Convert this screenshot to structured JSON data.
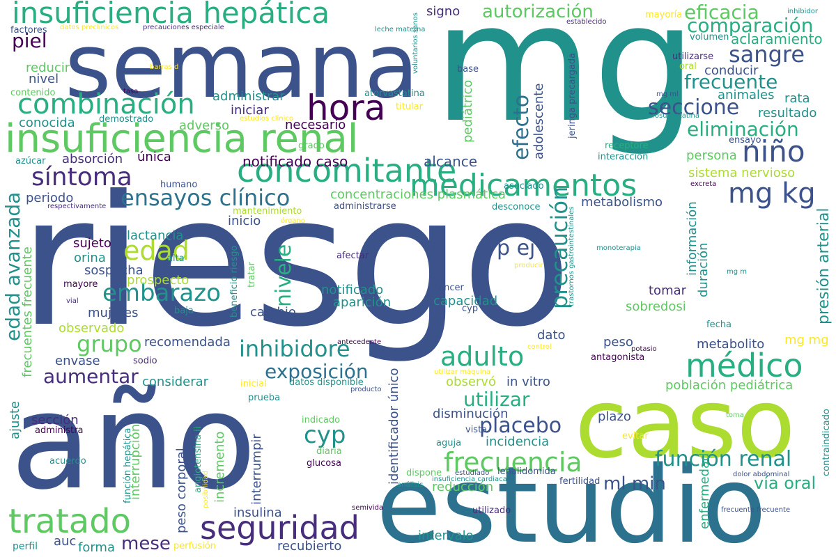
{
  "palette": {
    "navy": "#3b528b",
    "indigo": "#472d7b",
    "dark": "#440154",
    "teal": "#2c728e",
    "cyan": "#21918c",
    "green": "#28ae80",
    "lime": "#5ec962",
    "yellowgreen": "#addc30",
    "yellow": "#fde725"
  },
  "words": [
    "mg",
    "semana",
    "riesgo",
    "año",
    "estudio",
    "caso",
    "hora",
    "insuficiencia renal",
    "insuficiencia hepática",
    "concomitante",
    "medicamentos",
    "tratado",
    "seguridad",
    "médico",
    "frecuencia",
    "niño",
    "combinación",
    "síntoma",
    "edad",
    "adulto",
    "sangre",
    "mg kg",
    "autorización",
    "eficacia",
    "comparación",
    "aclaramiento",
    "frecuente",
    "seccione",
    "eliminación",
    "efecto",
    "precaución",
    "ensayos clínico",
    "edad avanzada",
    "embarazo",
    "grupo",
    "inhibidore",
    "exposición",
    "cyp",
    "placebo",
    "utilizar",
    "función renal",
    "aumentar",
    "nivele",
    "p ej",
    "ml min",
    "presión arterial",
    "piel",
    "notificado caso",
    "alcance",
    "absorción",
    "única",
    "periodo",
    "lactancia",
    "sujeto",
    "orina",
    "sospecha",
    "prospecto",
    "mujeres",
    "observado",
    "recomendada",
    "envase",
    "considerar",
    "sección",
    "administra",
    "acuerdo",
    "auc",
    "mese",
    "forma",
    "perfil",
    "perfusión",
    "insulina",
    "recubierto",
    "intervalo",
    "utilizado",
    "reducción",
    "fertilidad",
    "vía oral",
    "enfermedad",
    "contraindicado",
    "población pediátrica",
    "metabolito",
    "mg mg",
    "peso",
    "antagonista",
    "potasio",
    "control",
    "in vitro",
    "observó",
    "disminución",
    "vista",
    "aguja",
    "incidencia",
    "plazo",
    "evitar",
    "capacidad",
    "cyp c",
    "aparición",
    "notificado",
    "cambio",
    "tratar",
    "beneficio riesgo",
    "cáncer",
    "afectar",
    "tomar",
    "sobredosi",
    "duración",
    "información",
    "dato",
    "metabolismo",
    "inicio",
    "órgano",
    "mantenimiento",
    "administrarse",
    "desconoce",
    "asociado",
    "concentraciones plasmática",
    "necesario",
    "iniciar",
    "administrar",
    "adverso",
    "conocida",
    "demostrado",
    "contenido",
    "tasa",
    "atorvastatina",
    "titular",
    "reducir",
    "nivel",
    "factores",
    "datos preclínicos",
    "precauciones especiale",
    "leche materna",
    "voluntarios sanos",
    "signo",
    "base",
    "pediátrico",
    "adolescente",
    "jeringa precargada",
    "mayoría",
    "inhibidor",
    "establecido",
    "volumen",
    "utilizarse",
    "oral",
    "conducir",
    "mg ml",
    "animales",
    "rata",
    "resultado",
    "rosuvastatina",
    "ensayo",
    "receptore",
    "interacción",
    "persona",
    "sistema nervioso",
    "excreta",
    "trastornos gastrointestinales",
    "monoterapia",
    "producir",
    "mg m",
    "grado",
    "estudios clínico",
    "azúcar",
    "humano",
    "respectivamente",
    "frecuentes frecuente",
    "alta",
    "mayore",
    "vial",
    "baja",
    "sodio",
    "ajuste",
    "antecedente",
    "identificador único",
    "inicial",
    "datos disponible",
    "producto",
    "prueba",
    "utilizar máquina",
    "indicado",
    "diaria",
    "glucosa",
    "función hepática",
    "angiotensina ii",
    "posibilidad",
    "incremento",
    "interrumpir",
    "interrupción",
    "peso corporal",
    "lenalidomida",
    "estudiado",
    "insuficiencia cardiaca",
    "análisis",
    "dispone",
    "semivida",
    "dolor abdominal",
    "frecuente frecuente",
    "toma",
    "barras d",
    "fecha"
  ]
}
